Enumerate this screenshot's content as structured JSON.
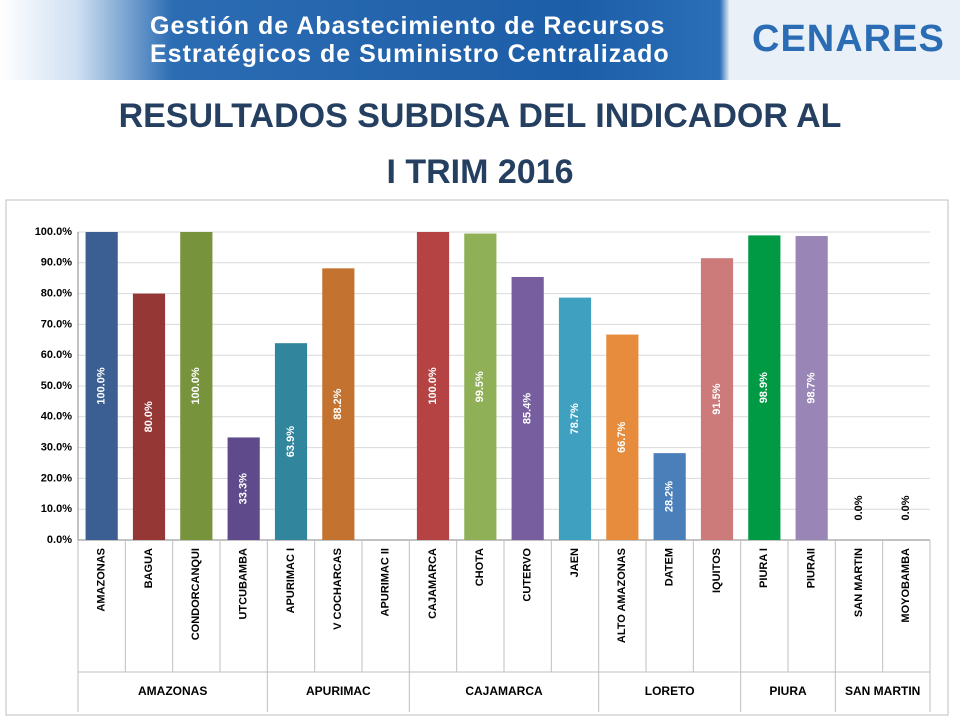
{
  "header": {
    "banner_lines": [
      "Gestión de Abastecimiento de Recursos",
      "Estratégicos de Suministro Centralizado"
    ],
    "logo": "CENARES"
  },
  "chart_data": {
    "type": "bar",
    "title": [
      "RESULTADOS SUBDISA DEL INDICADOR AL",
      "I TRIM 2016"
    ],
    "groups": [
      {
        "name": "AMAZONAS",
        "categories": [
          "AMAZONAS",
          "BAGUA",
          "CONDORCANQUI",
          "UTCUBAMBA"
        ]
      },
      {
        "name": "APURIMAC",
        "categories": [
          "APURIMAC I",
          "V COCHARCAS",
          "APURIMAC II"
        ]
      },
      {
        "name": "CAJAMARCA",
        "categories": [
          "CAJAMARCA",
          "CHOTA",
          "CUTERVO",
          "JAEN"
        ]
      },
      {
        "name": "LORETO",
        "categories": [
          "ALTO AMAZONAS",
          "DATEM",
          "IQUITOS"
        ]
      },
      {
        "name": "PIURA",
        "categories": [
          "PIURA I",
          "PIURAII"
        ]
      },
      {
        "name": "SAN MARTIN",
        "categories": [
          "SAN MARTIN",
          "MOYOBAMBA"
        ]
      }
    ],
    "values": [
      100,
      80,
      100,
      33.3,
      63.9,
      88.2,
      null,
      100,
      99.5,
      85.4,
      78.7,
      66.7,
      28.2,
      91.5,
      98.9,
      98.7,
      0,
      0
    ],
    "value_labels": [
      "100.0%",
      "80.0%",
      "100.0%",
      "33.3%",
      "63.9%",
      "88.2%",
      null,
      "100.0%",
      "99.5%",
      "85.4%",
      "78.7%",
      "66.7%",
      "28.2%",
      "91.5%",
      "98.9%",
      "98.7%",
      "0.0%",
      "0.0%"
    ],
    "colors": [
      "#3b5f93",
      "#953735",
      "#77933c",
      "#5f4b8b",
      "#31859c",
      "#c3732f",
      null,
      "#b64343",
      "#8fb057",
      "#775e9e",
      "#3fa1bf",
      "#e78c3c",
      "#4b7fba",
      "#cc7a7a",
      "#009a44",
      "#9a86b6",
      "#4f81bd",
      "#c0504d"
    ],
    "ylim": [
      0,
      100
    ],
    "yticks": [
      {
        "value": 0,
        "label": "0.0%"
      },
      {
        "value": 10,
        "label": "10.0%"
      },
      {
        "value": 20,
        "label": "20.0%"
      },
      {
        "value": 30,
        "label": "30.0%"
      },
      {
        "value": 40,
        "label": "40.0%"
      },
      {
        "value": 50,
        "label": "50.0%"
      },
      {
        "value": 60,
        "label": "60.0%"
      },
      {
        "value": 70,
        "label": "70.0%"
      },
      {
        "value": 80,
        "label": "80.0%"
      },
      {
        "value": 90,
        "label": "90.0%"
      },
      {
        "value": 100,
        "label": "100.0%"
      }
    ],
    "grid": true
  }
}
